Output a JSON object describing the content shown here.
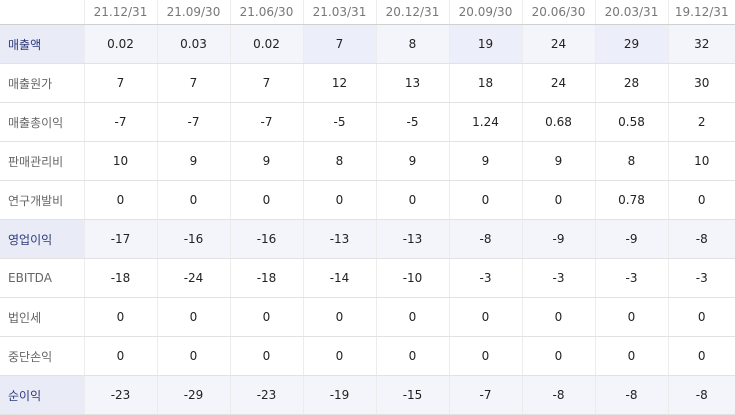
{
  "columns": [
    "21.12/31",
    "21.09/30",
    "21.06/30",
    "21.03/31",
    "20.12/31",
    "20.09/30",
    "20.06/30",
    "20.03/31",
    "19.12/31"
  ],
  "rows": [
    {
      "label": "매출액",
      "values": [
        "0.02",
        "0.03",
        "0.02",
        "7",
        "8",
        "19",
        "24",
        "29",
        "32"
      ]
    },
    {
      "label": "매출원가",
      "values": [
        "7",
        "7",
        "7",
        "12",
        "13",
        "18",
        "24",
        "28",
        "30"
      ]
    },
    {
      "label": "매출총이익",
      "values": [
        "-7",
        "-7",
        "-7",
        "-5",
        "-5",
        "1.24",
        "0.68",
        "0.58",
        "2"
      ]
    },
    {
      "label": "판매관리비",
      "values": [
        "10",
        "9",
        "9",
        "8",
        "9",
        "9",
        "9",
        "8",
        "10"
      ]
    },
    {
      "label": "연구개발비",
      "values": [
        "0",
        "0",
        "0",
        "0",
        "0",
        "0",
        "0",
        "0.78",
        "0"
      ]
    },
    {
      "label": "영업이익",
      "values": [
        "-17",
        "-16",
        "-16",
        "-13",
        "-13",
        "-8",
        "-9",
        "-9",
        "-8"
      ]
    },
    {
      "label": "EBITDA",
      "values": [
        "-18",
        "-24",
        "-18",
        "-14",
        "-10",
        "-3",
        "-3",
        "-3",
        "-3"
      ]
    },
    {
      "label": "법인세",
      "values": [
        "0",
        "0",
        "0",
        "0",
        "0",
        "0",
        "0",
        "0",
        "0"
      ]
    },
    {
      "label": "중단손익",
      "values": [
        "0",
        "0",
        "0",
        "0",
        "0",
        "0",
        "0",
        "0",
        "0"
      ]
    },
    {
      "label": "순이익",
      "values": [
        "-23",
        "-29",
        "-23",
        "-19",
        "-15",
        "-7",
        "-8",
        "-8",
        "-8"
      ]
    }
  ]
}
